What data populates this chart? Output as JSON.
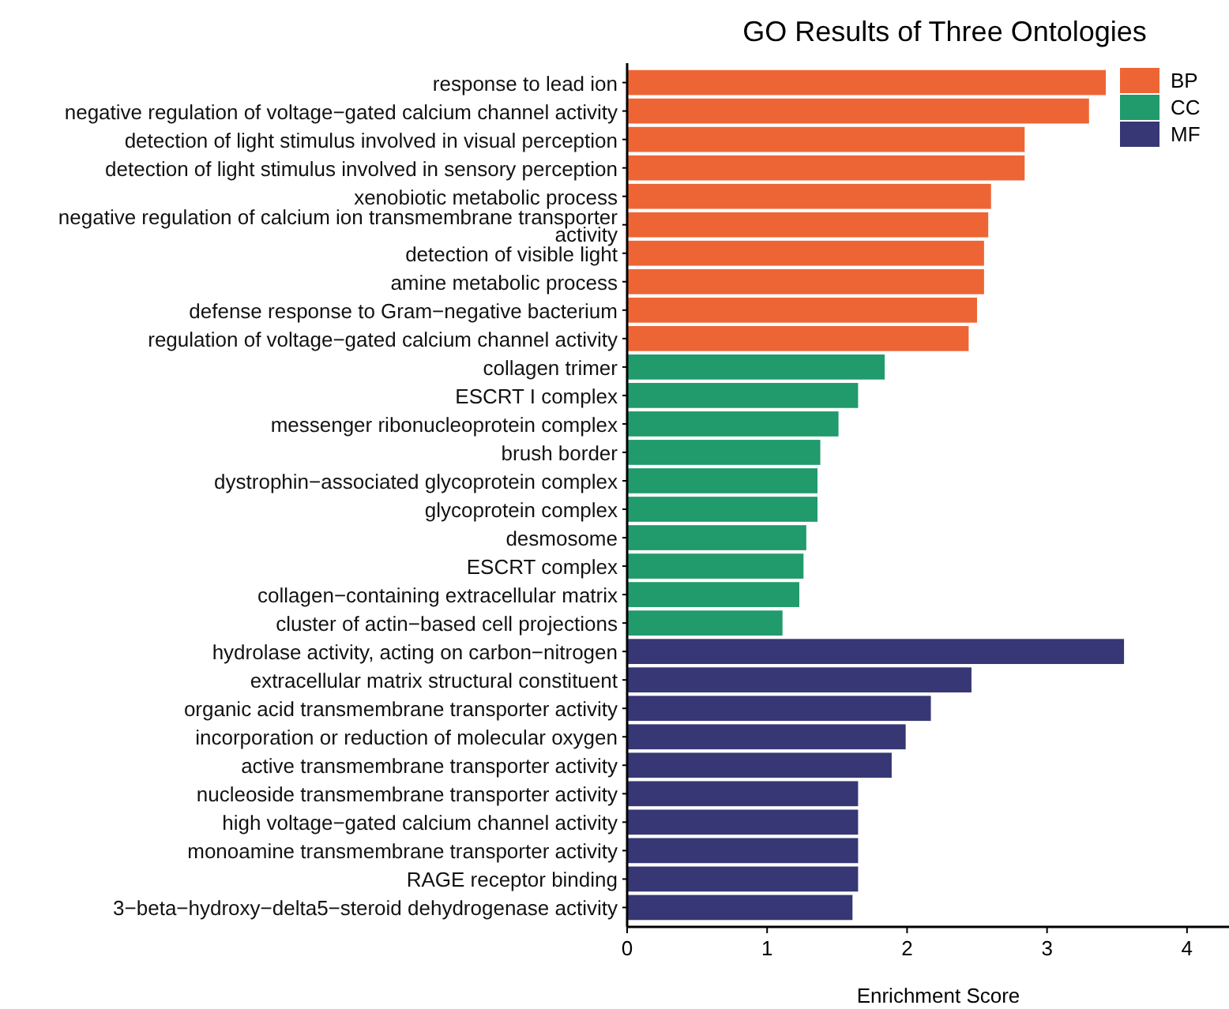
{
  "chart_data": {
    "type": "bar",
    "orientation": "horizontal",
    "stacked": true,
    "title": "GO Results of Three Ontologies",
    "xlabel": "Enrichment Score",
    "legend": "top right",
    "xlim": [
      0,
      4.3
    ],
    "xticks": [
      0,
      1,
      2,
      3,
      4
    ],
    "categories": [
      "response to lead ion",
      "negative regulation of voltage−gated calcium channel activity",
      "detection of light stimulus involved in visual perception",
      "detection of light stimulus involved in sensory perception",
      "xenobiotic metabolic process",
      "negative regulation of calcium ion transmembrane transporter activity",
      "detection of visible light",
      "amine metabolic process",
      "defense response to Gram−negative bacterium",
      "regulation of voltage−gated calcium channel activity",
      "collagen trimer",
      "ESCRT I complex",
      "messenger ribonucleoprotein complex",
      "brush border",
      "dystrophin−associated glycoprotein complex",
      "glycoprotein complex",
      "desmosome",
      "ESCRT complex",
      "collagen−containing extracellular matrix",
      "cluster of actin−based cell projections",
      "hydrolase activity, acting on carbon−nitrogen",
      "extracellular matrix structural constituent",
      "organic acid transmembrane transporter activity",
      "incorporation or reduction of molecular oxygen",
      "active transmembrane transporter activity",
      "nucleoside transmembrane transporter activity",
      "high voltage−gated calcium channel activity",
      "monoamine transmembrane transporter activity",
      "RAGE receptor binding",
      "3−beta−hydroxy−delta5−steroid dehydrogenase activity"
    ],
    "series": [
      {
        "name": "BP",
        "color": "#ee6535",
        "values": [
          3.42,
          3.3,
          2.84,
          2.84,
          2.6,
          2.58,
          2.55,
          2.55,
          2.5,
          2.44,
          null,
          null,
          null,
          null,
          null,
          null,
          null,
          null,
          null,
          null,
          null,
          null,
          null,
          null,
          null,
          null,
          null,
          null,
          null,
          null
        ]
      },
      {
        "name": "CC",
        "color": "#219a6c",
        "values": [
          null,
          null,
          null,
          null,
          null,
          null,
          null,
          null,
          null,
          null,
          1.84,
          1.65,
          1.51,
          1.38,
          1.36,
          1.36,
          1.28,
          1.26,
          1.23,
          1.11,
          null,
          null,
          null,
          null,
          null,
          null,
          null,
          null,
          null,
          null
        ]
      },
      {
        "name": "MF",
        "color": "#363774",
        "values": [
          null,
          null,
          null,
          null,
          null,
          null,
          null,
          null,
          null,
          null,
          null,
          null,
          null,
          null,
          null,
          null,
          null,
          null,
          null,
          null,
          3.55,
          2.46,
          2.17,
          1.99,
          1.89,
          1.65,
          1.65,
          1.65,
          1.65,
          1.61
        ]
      }
    ]
  }
}
